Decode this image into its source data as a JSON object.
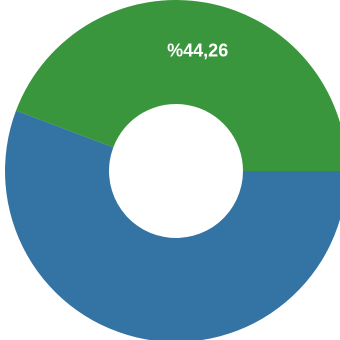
{
  "chart_data": {
    "type": "pie",
    "style": "donut",
    "categories": [
      "",
      ""
    ],
    "values": [
      55.74,
      44.26
    ],
    "colors": [
      "#3474a4",
      "#3a963c"
    ],
    "labels": [
      "",
      "%44,26"
    ],
    "title": "",
    "legend": "none"
  }
}
